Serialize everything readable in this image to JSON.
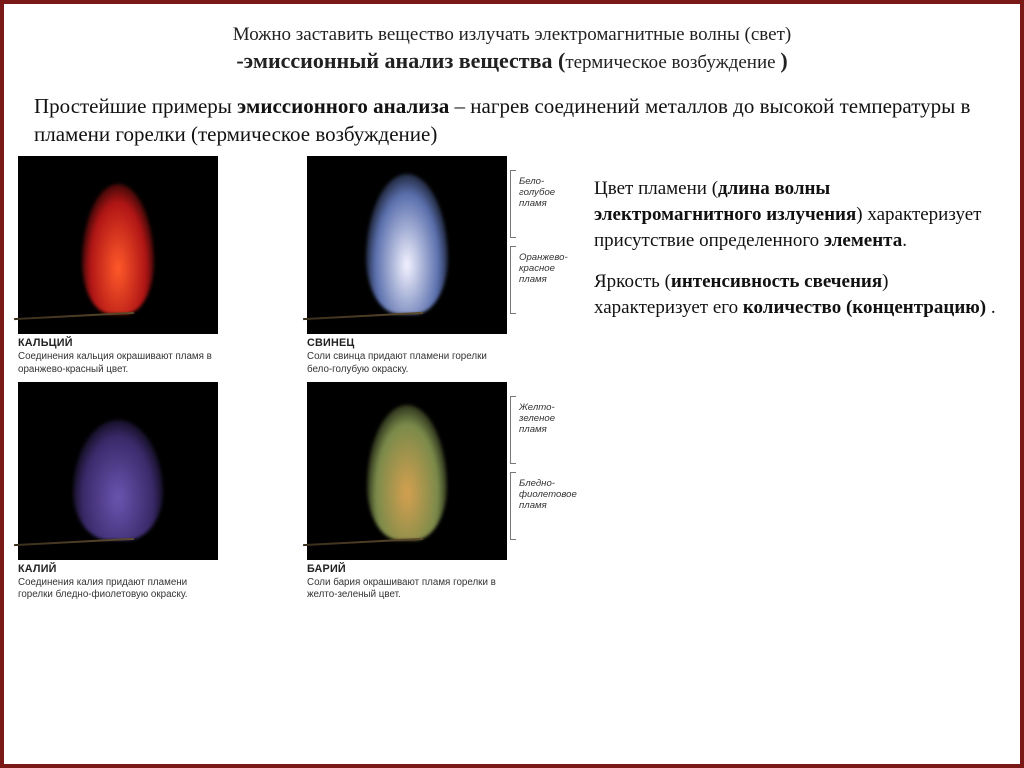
{
  "header": {
    "line1": "Можно заставить вещество излучать электромагнитные волны (свет)",
    "line2_bold": "-эмиссионный анализ вещества (",
    "line2_paren": "термическое возбуждение ",
    "line2_close": ")"
  },
  "intro": {
    "pre": "Простейшие примеры ",
    "bold": "эмиссионного анализа",
    "post": " – нагрев соединений металлов до высокой температуры в пламени горелки (термическое возбуждение)"
  },
  "right": {
    "p1_pre": "Цвет пламени (",
    "p1_bold1": "длина волны электромагнитного излучения",
    "p1_mid": ") характеризует присутствие определенного ",
    "p1_bold2": "элемента",
    "p1_post": ".",
    "p2_pre": "Яркость (",
    "p2_bold1": "интенсивность свечения",
    "p2_mid": ") характеризует его ",
    "p2_bold2": "количество (концентрацию)",
    "p2_post": " ."
  },
  "panels": {
    "calcium": {
      "title": "КАЛЬЦИЙ",
      "caption": "Соединения кальция окрашивают пламя в оранжево-красный цвет.",
      "flame_color_outer": "#b01515",
      "flame_color_inner": "#ff5a2a",
      "flame_w": 72,
      "flame_h": 130
    },
    "lead": {
      "title": "СВИНЕЦ",
      "caption": "Соли свинца придают пламени горелки бело-голубую окраску.",
      "flame_color_outer": "#5a6fad",
      "flame_color_inner": "#f3f3ff",
      "flame_w": 82,
      "flame_h": 140,
      "label_top": "Бело-голубое пламя",
      "label_bottom": "Оранжево-красное пламя"
    },
    "potassium": {
      "title": "КАЛИЙ",
      "caption": "Соединения калия придают пламени горелки бледно-фиолетовую окраску.",
      "flame_color_outer": "#3a2a6a",
      "flame_color_inner": "#6a55b0",
      "flame_w": 90,
      "flame_h": 120
    },
    "barium": {
      "title": "БАРИЙ",
      "caption": "Соли бария окрашивают пламя горелки в желто-зеленый цвет.",
      "flame_color_outer": "#7a8a4a",
      "flame_color_inner": "#d4a050",
      "flame_w": 80,
      "flame_h": 135,
      "label_top": "Желто-зеленое пламя",
      "label_bottom": "Бледно-фиолетовое пламя"
    }
  },
  "colors": {
    "border": "#7a1818",
    "bg": "#ffffff",
    "flame_bg": "#000000"
  }
}
